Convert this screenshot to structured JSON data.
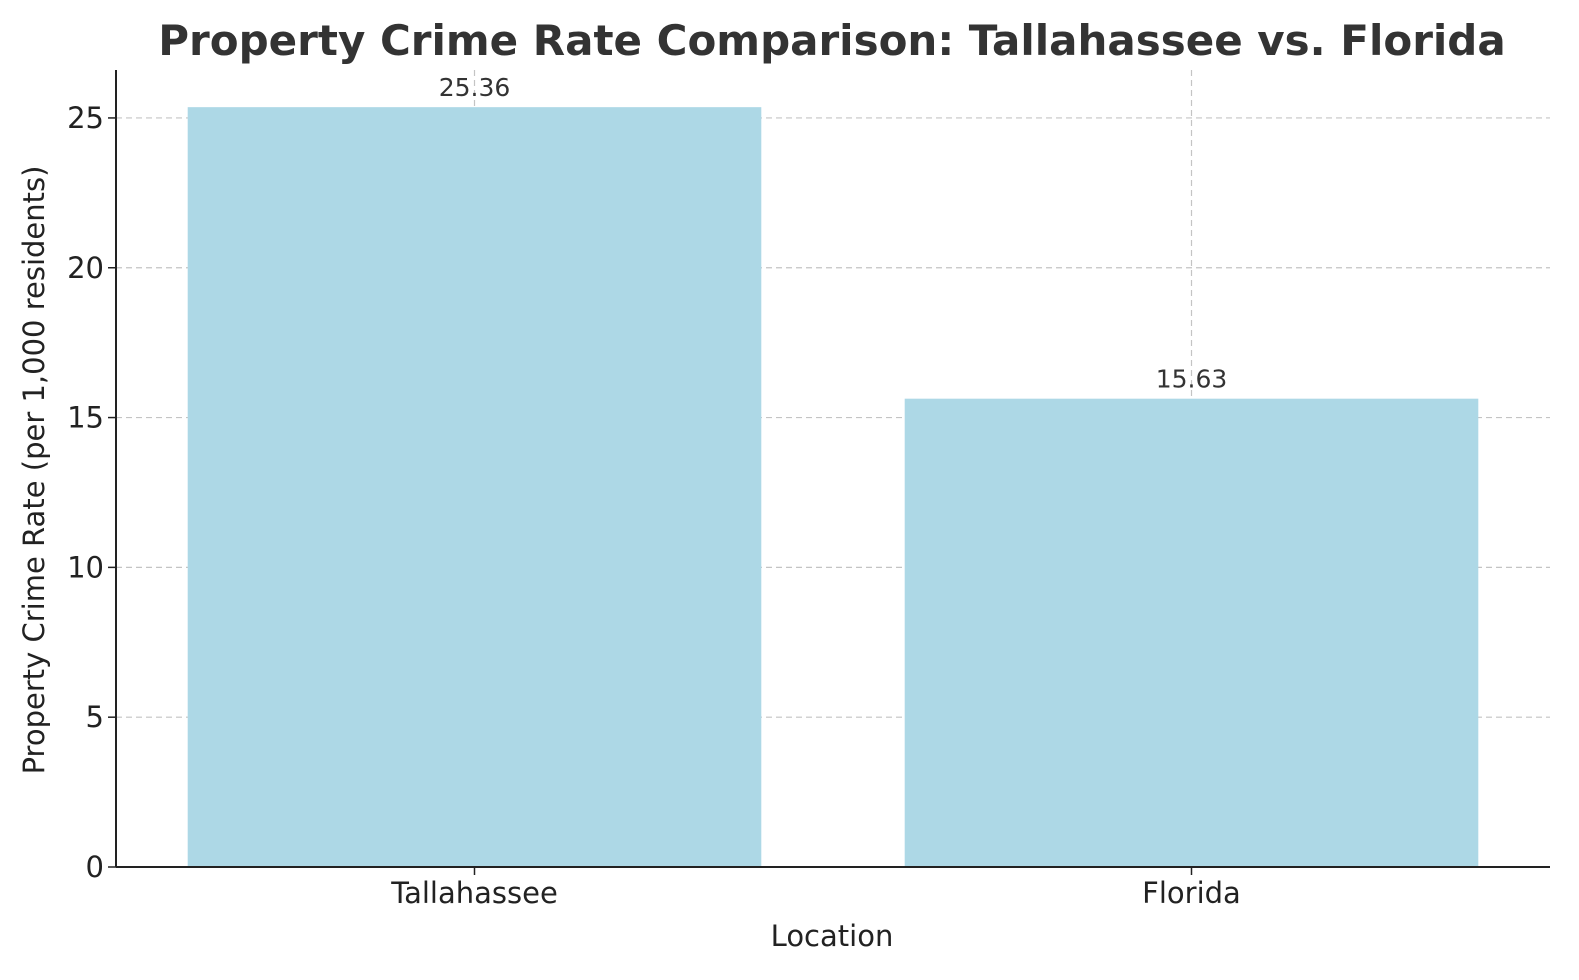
{
  "chart_data": {
    "type": "bar",
    "title": "Property Crime Rate Comparison: Tallahassee vs. Florida",
    "xlabel": "Location",
    "ylabel": "Property Crime Rate (per 1,000 residents)",
    "categories": [
      "Tallahassee",
      "Florida"
    ],
    "values": [
      25.36,
      15.63
    ],
    "data_labels": [
      "25.36",
      "15.63"
    ],
    "ylim": [
      0,
      26.6
    ],
    "yticks": [
      0,
      5,
      10,
      15,
      20,
      25
    ],
    "grid": true,
    "bar_color": "#ADD8E6"
  }
}
